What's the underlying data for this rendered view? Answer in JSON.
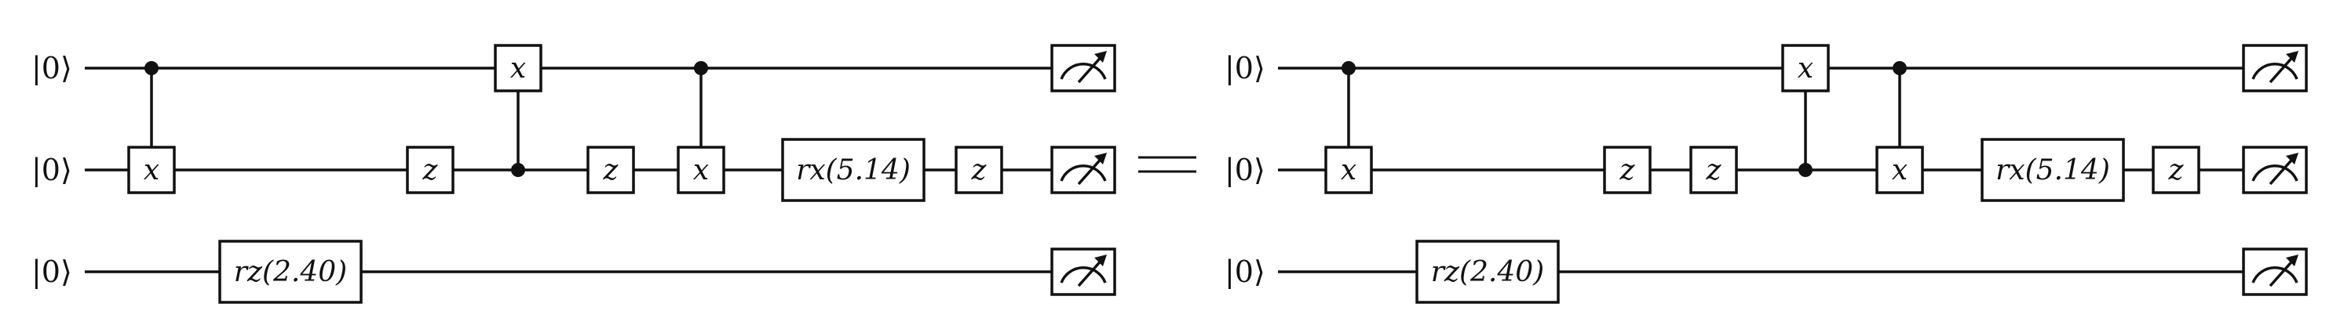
{
  "equals_sign": "=",
  "circuits": [
    {
      "inputs": [
        "|0⟩",
        "|0⟩",
        "|0⟩"
      ],
      "gates": [
        {
          "kind": "cnot",
          "control": 0,
          "target": 1,
          "label": "x"
        },
        {
          "kind": "single",
          "qubit": 2,
          "label": "rz(2.40)"
        },
        {
          "kind": "single",
          "qubit": 1,
          "label": "z"
        },
        {
          "kind": "cnot",
          "control": 1,
          "target": 0,
          "label": "x"
        },
        {
          "kind": "single",
          "qubit": 1,
          "label": "z"
        },
        {
          "kind": "cnot",
          "control": 0,
          "target": 1,
          "label": "x"
        },
        {
          "kind": "single",
          "qubit": 1,
          "label": "rx(5.14)"
        },
        {
          "kind": "single",
          "qubit": 1,
          "label": "z"
        }
      ],
      "measurements": [
        0,
        1,
        2
      ]
    },
    {
      "inputs": [
        "|0⟩",
        "|0⟩",
        "|0⟩"
      ],
      "gates": [
        {
          "kind": "cnot",
          "control": 0,
          "target": 1,
          "label": "x"
        },
        {
          "kind": "single",
          "qubit": 2,
          "label": "rz(2.40)"
        },
        {
          "kind": "single",
          "qubit": 1,
          "label": "z"
        },
        {
          "kind": "single",
          "qubit": 1,
          "label": "z"
        },
        {
          "kind": "cnot",
          "control": 1,
          "target": 0,
          "label": "x"
        },
        {
          "kind": "cnot",
          "control": 0,
          "target": 1,
          "label": "x"
        },
        {
          "kind": "single",
          "qubit": 1,
          "label": "rx(5.14)"
        },
        {
          "kind": "single",
          "qubit": 1,
          "label": "z"
        }
      ],
      "measurements": [
        0,
        1,
        2
      ]
    }
  ]
}
